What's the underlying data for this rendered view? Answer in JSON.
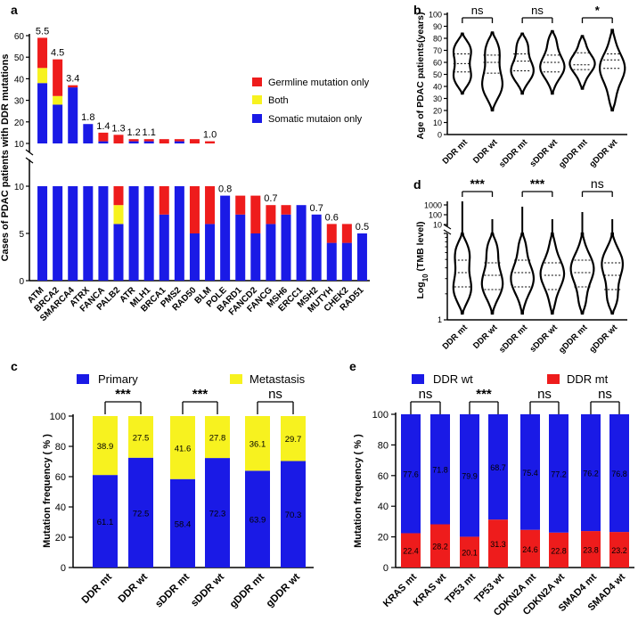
{
  "colors": {
    "red": "#ee1c1c",
    "yellow": "#f7f21f",
    "blue": "#1a1ae6",
    "black": "#000000"
  },
  "chart_data": [
    {
      "panel": "a",
      "type": "bar",
      "stacked": true,
      "axis_break": true,
      "ylabel": "Cases of PDAC patients with DDR mutations",
      "yticks_top": [
        10,
        20,
        30,
        40,
        50,
        60
      ],
      "yticks_bottom": [
        0,
        5,
        10
      ],
      "categories": [
        "ATM",
        "BRCA2",
        "SMARCA4",
        "ATRX",
        "FANCA",
        "PALB2",
        "ATR",
        "MLH1",
        "BRCA1",
        "PMS2",
        "RAD50",
        "BLM",
        "POLE",
        "BARD1",
        "FANCD2",
        "FANCG",
        "MSH6",
        "ERCC1",
        "MSH2",
        "MUTYH",
        "CHEK2",
        "RAD51"
      ],
      "legend": [
        "Germline mutation only",
        "Both",
        "Somatic mutaion only"
      ],
      "series": [
        {
          "name": "Somatic mutaion only",
          "values": [
            38,
            28,
            36,
            19,
            11,
            6,
            11,
            11,
            7,
            11,
            5,
            6,
            9,
            7,
            5,
            6,
            7,
            8,
            7,
            4,
            4,
            5
          ]
        },
        {
          "name": "Both",
          "values": [
            7,
            4,
            0,
            0,
            0,
            2,
            0,
            0,
            0,
            0,
            0,
            0,
            0,
            0,
            0,
            0,
            0,
            0,
            0,
            0,
            0,
            0
          ]
        },
        {
          "name": "Germline mutation only",
          "values": [
            14,
            17,
            1,
            0,
            4,
            6,
            1,
            1,
            5,
            1,
            7,
            5,
            0,
            2,
            4,
            2,
            1,
            0,
            0,
            2,
            2,
            0
          ]
        }
      ],
      "annotations": [
        {
          "category": "ATM",
          "text": "5.5"
        },
        {
          "category": "BRCA2",
          "text": "4.5"
        },
        {
          "category": "SMARCA4",
          "text": "3.4"
        },
        {
          "category": "ATRX",
          "text": "1.8"
        },
        {
          "category": "FANCA",
          "text": "1.4"
        },
        {
          "category": "PALB2",
          "text": "1.3"
        },
        {
          "category": "ATR",
          "text": "1.2"
        },
        {
          "category": "MLH1",
          "text": "1.1"
        },
        {
          "category": "BLM",
          "text": "1.0"
        },
        {
          "category": "POLE",
          "text": "0.8"
        },
        {
          "category": "FANCG",
          "text": "0.7"
        },
        {
          "category": "MSH2",
          "text": "0.7"
        },
        {
          "category": "MUTYH",
          "text": "0.6"
        },
        {
          "category": "RAD51",
          "text": "0.5"
        }
      ]
    },
    {
      "panel": "b",
      "type": "violin",
      "ylabel": "Age of PDAC patients(years)",
      "ylim": [
        0,
        100
      ],
      "yticks": [
        0,
        10,
        20,
        30,
        40,
        50,
        60,
        70,
        80,
        90,
        100
      ],
      "categories": [
        "DDR mt",
        "DDR wt",
        "sDDR mt",
        "sDDR wt",
        "gDDR mt",
        "gDDR wt"
      ],
      "ranges": [
        [
          34,
          84
        ],
        [
          20,
          85
        ],
        [
          34,
          84
        ],
        [
          34,
          86
        ],
        [
          38,
          82
        ],
        [
          20,
          87
        ]
      ],
      "quartiles": [
        [
          52,
          59,
          67
        ],
        [
          51,
          60,
          66
        ],
        [
          53,
          61,
          67
        ],
        [
          52,
          60,
          66
        ],
        [
          54,
          58,
          68
        ],
        [
          55,
          62,
          67
        ]
      ],
      "comparisons": [
        {
          "pair": [
            0,
            1
          ],
          "label": "ns"
        },
        {
          "pair": [
            2,
            3
          ],
          "label": "ns"
        },
        {
          "pair": [
            4,
            5
          ],
          "label": "*"
        }
      ]
    },
    {
      "panel": "d",
      "type": "violin",
      "yscale": "log",
      "ylabel": "Log10 (TMB level)",
      "ylabel_main": "Log",
      "ylabel_sub": "10",
      "ylabel_rest": " (TMB level)",
      "yticks_top": [
        "1000",
        "100",
        "10"
      ],
      "ytick_bottom": "1",
      "categories": [
        "DDR mt",
        "DDR wt",
        "sDDR mt",
        "sDDR wt",
        "gDDR mt",
        "gDDR wt"
      ],
      "comparisons": [
        {
          "pair": [
            0,
            1
          ],
          "label": "***"
        },
        {
          "pair": [
            2,
            3
          ],
          "label": "***"
        },
        {
          "pair": [
            4,
            5
          ],
          "label": "ns"
        }
      ]
    },
    {
      "panel": "c",
      "type": "bar",
      "stacked": true,
      "ylabel": "Mutation frequency ( % )",
      "ylim": [
        0,
        100
      ],
      "yticks": [
        0,
        20,
        40,
        60,
        80,
        100
      ],
      "legend": [
        "Primary",
        "Metastasis"
      ],
      "categories": [
        "DDR mt",
        "DDR wt",
        "sDDR mt",
        "sDDR wt",
        "gDDR mt",
        "gDDR wt"
      ],
      "series": [
        {
          "name": "Primary",
          "values": [
            61.1,
            72.5,
            58.4,
            72.3,
            63.9,
            70.3
          ]
        },
        {
          "name": "Metastasis",
          "values": [
            38.9,
            27.5,
            41.6,
            27.8,
            36.1,
            29.7
          ]
        }
      ],
      "primary_labels": [
        "61.1",
        "72.5",
        "58.4",
        "72.3",
        "63.9",
        "70.3"
      ],
      "metastasis_labels": [
        "38.9",
        "27.5",
        "41.6",
        "27.8",
        "36.1",
        "29.7"
      ],
      "comparisons": [
        {
          "pair": [
            0,
            1
          ],
          "label": "***"
        },
        {
          "pair": [
            2,
            3
          ],
          "label": "***"
        },
        {
          "pair": [
            4,
            5
          ],
          "label": "ns"
        }
      ]
    },
    {
      "panel": "e",
      "type": "bar",
      "stacked": true,
      "ylabel": "Mutation frequency ( % )",
      "ylim": [
        0,
        100
      ],
      "yticks": [
        0,
        20,
        40,
        60,
        80,
        100
      ],
      "legend": [
        "DDR wt",
        "DDR mt"
      ],
      "categories": [
        "KRAS mt",
        "KRAS wt",
        "TP53 mt",
        "TP53 wt",
        "CDKN2A mt",
        "CDKN2A wt",
        "SMAD4 mt",
        "SMAD4 wt"
      ],
      "series": [
        {
          "name": "DDR mt",
          "values": [
            22.4,
            28.2,
            20.1,
            31.3,
            24.6,
            22.8,
            23.8,
            23.2
          ]
        },
        {
          "name": "DDR wt",
          "values": [
            77.6,
            71.8,
            79.9,
            68.7,
            75.4,
            77.2,
            76.2,
            76.8
          ]
        }
      ],
      "mt_labels": [
        "22.4",
        "28.2",
        "20.1",
        "31.3",
        "24.6",
        "22.8",
        "23.8",
        "23.2"
      ],
      "wt_labels": [
        "77.6",
        "71.8",
        "79.9",
        "68.7",
        "75.4",
        "77.2",
        "76.2",
        "76.8"
      ],
      "comparisons": [
        {
          "pair": [
            0,
            1
          ],
          "label": "ns"
        },
        {
          "pair": [
            2,
            3
          ],
          "label": "***"
        },
        {
          "pair": [
            4,
            5
          ],
          "label": "ns"
        },
        {
          "pair": [
            6,
            7
          ],
          "label": "ns"
        }
      ]
    }
  ]
}
